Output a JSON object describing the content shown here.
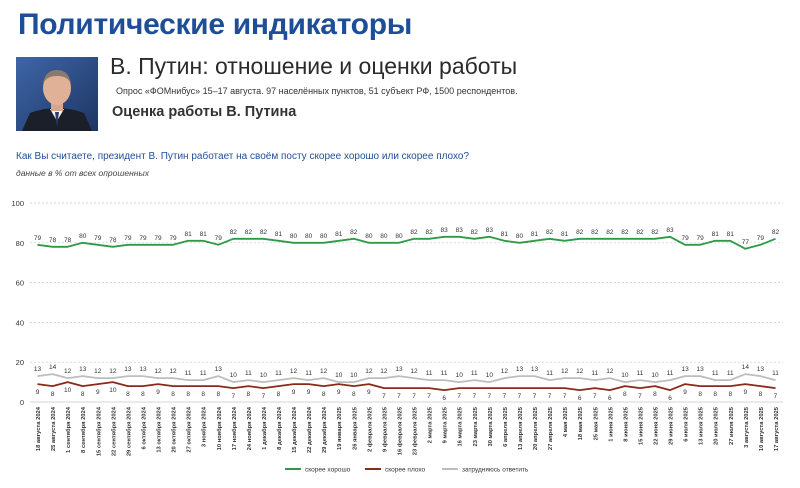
{
  "header": {
    "title": "Политические индикаторы",
    "subtitle": "В. Путин: отношение и оценки работы",
    "survey_info": "Опрос «ФОМнибус» 15–17 августа. 97 населённых пунктов, 51 субъект РФ, 1500 респондентов.",
    "section_title": "Оценка работы В. Путина"
  },
  "question": "Как Вы считаете, президент В. Путин работает на своём посту скорее хорошо или скорее плохо?",
  "note": "данные в % от всех опрошенных",
  "colors": {
    "good": "#2e9a47",
    "bad": "#8a2a18",
    "unsure": "#bdbdbd",
    "title": "#1f4e99"
  },
  "chart_data": {
    "type": "line",
    "ylim": [
      0,
      100
    ],
    "yticks": [
      0,
      20,
      40,
      60,
      80,
      100
    ],
    "legend_position": "bottom",
    "x": [
      "18 августа 2024",
      "25 августа 2024",
      "1 сентября 2024",
      "8 сентября 2024",
      "15 сентября 2024",
      "22 сентября 2024",
      "29 сентября 2024",
      "6 октября 2024",
      "13 октября 2024",
      "20 октября 2024",
      "27 октября 2024",
      "3 ноября 2024",
      "10 ноября 2024",
      "17 ноября 2024",
      "24 ноября 2024",
      "1 декабря 2024",
      "8 декабря 2024",
      "15 декабря 2024",
      "22 декабря 2024",
      "29 декабря 2024",
      "19 января 2025",
      "26 января 2025",
      "2 февраля 2025",
      "9 февраля 2025",
      "16 февраля 2025",
      "23 февраля 2025",
      "2 марта 2025",
      "9 марта 2025",
      "16 марта 2025",
      "23 марта 2025",
      "30 марта 2025",
      "6 апреля 2025",
      "13 апреля 2025",
      "20 апреля 2025",
      "27 апреля 2025",
      "4 мая 2025",
      "18 мая 2025",
      "25 мая 2025",
      "1 июня 2025",
      "8 июня 2025",
      "15 июня 2025",
      "22 июня 2025",
      "29 июня 2025",
      "6 июля 2025",
      "13 июля 2025",
      "20 июля 2025",
      "27 июля 2025",
      "3 августа 2025",
      "10 августа 2025",
      "17 августа 2025"
    ],
    "series": [
      {
        "name": "скорее хорошо",
        "color": "#2e9a47",
        "values": [
          79,
          78,
          78,
          80,
          79,
          78,
          79,
          79,
          79,
          79,
          81,
          81,
          79,
          82,
          82,
          82,
          81,
          80,
          80,
          80,
          81,
          82,
          80,
          80,
          80,
          82,
          82,
          83,
          83,
          82,
          83,
          81,
          80,
          81,
          82,
          81,
          82,
          82,
          82,
          82,
          82,
          82,
          83,
          79,
          79,
          81,
          81,
          77,
          79,
          82
        ]
      },
      {
        "name": "скорее плохо",
        "color": "#8a2a18",
        "values": [
          9,
          8,
          10,
          8,
          9,
          10,
          8,
          8,
          9,
          8,
          8,
          8,
          8,
          7,
          8,
          7,
          8,
          9,
          9,
          8,
          9,
          8,
          9,
          7,
          7,
          7,
          7,
          6,
          7,
          7,
          7,
          7,
          7,
          7,
          7,
          7,
          6,
          7,
          6,
          8,
          7,
          8,
          6,
          9,
          8,
          8,
          8,
          9,
          8,
          7
        ]
      },
      {
        "name": "затрудняюсь ответить",
        "color": "#bdbdbd",
        "values": [
          13,
          14,
          12,
          13,
          12,
          12,
          13,
          13,
          12,
          12,
          11,
          11,
          13,
          10,
          11,
          10,
          11,
          12,
          11,
          12,
          10,
          10,
          12,
          12,
          13,
          12,
          11,
          11,
          10,
          11,
          10,
          12,
          13,
          13,
          11,
          12,
          12,
          11,
          12,
          10,
          11,
          10,
          11,
          13,
          13,
          11,
          11,
          14,
          13,
          11
        ]
      }
    ]
  }
}
